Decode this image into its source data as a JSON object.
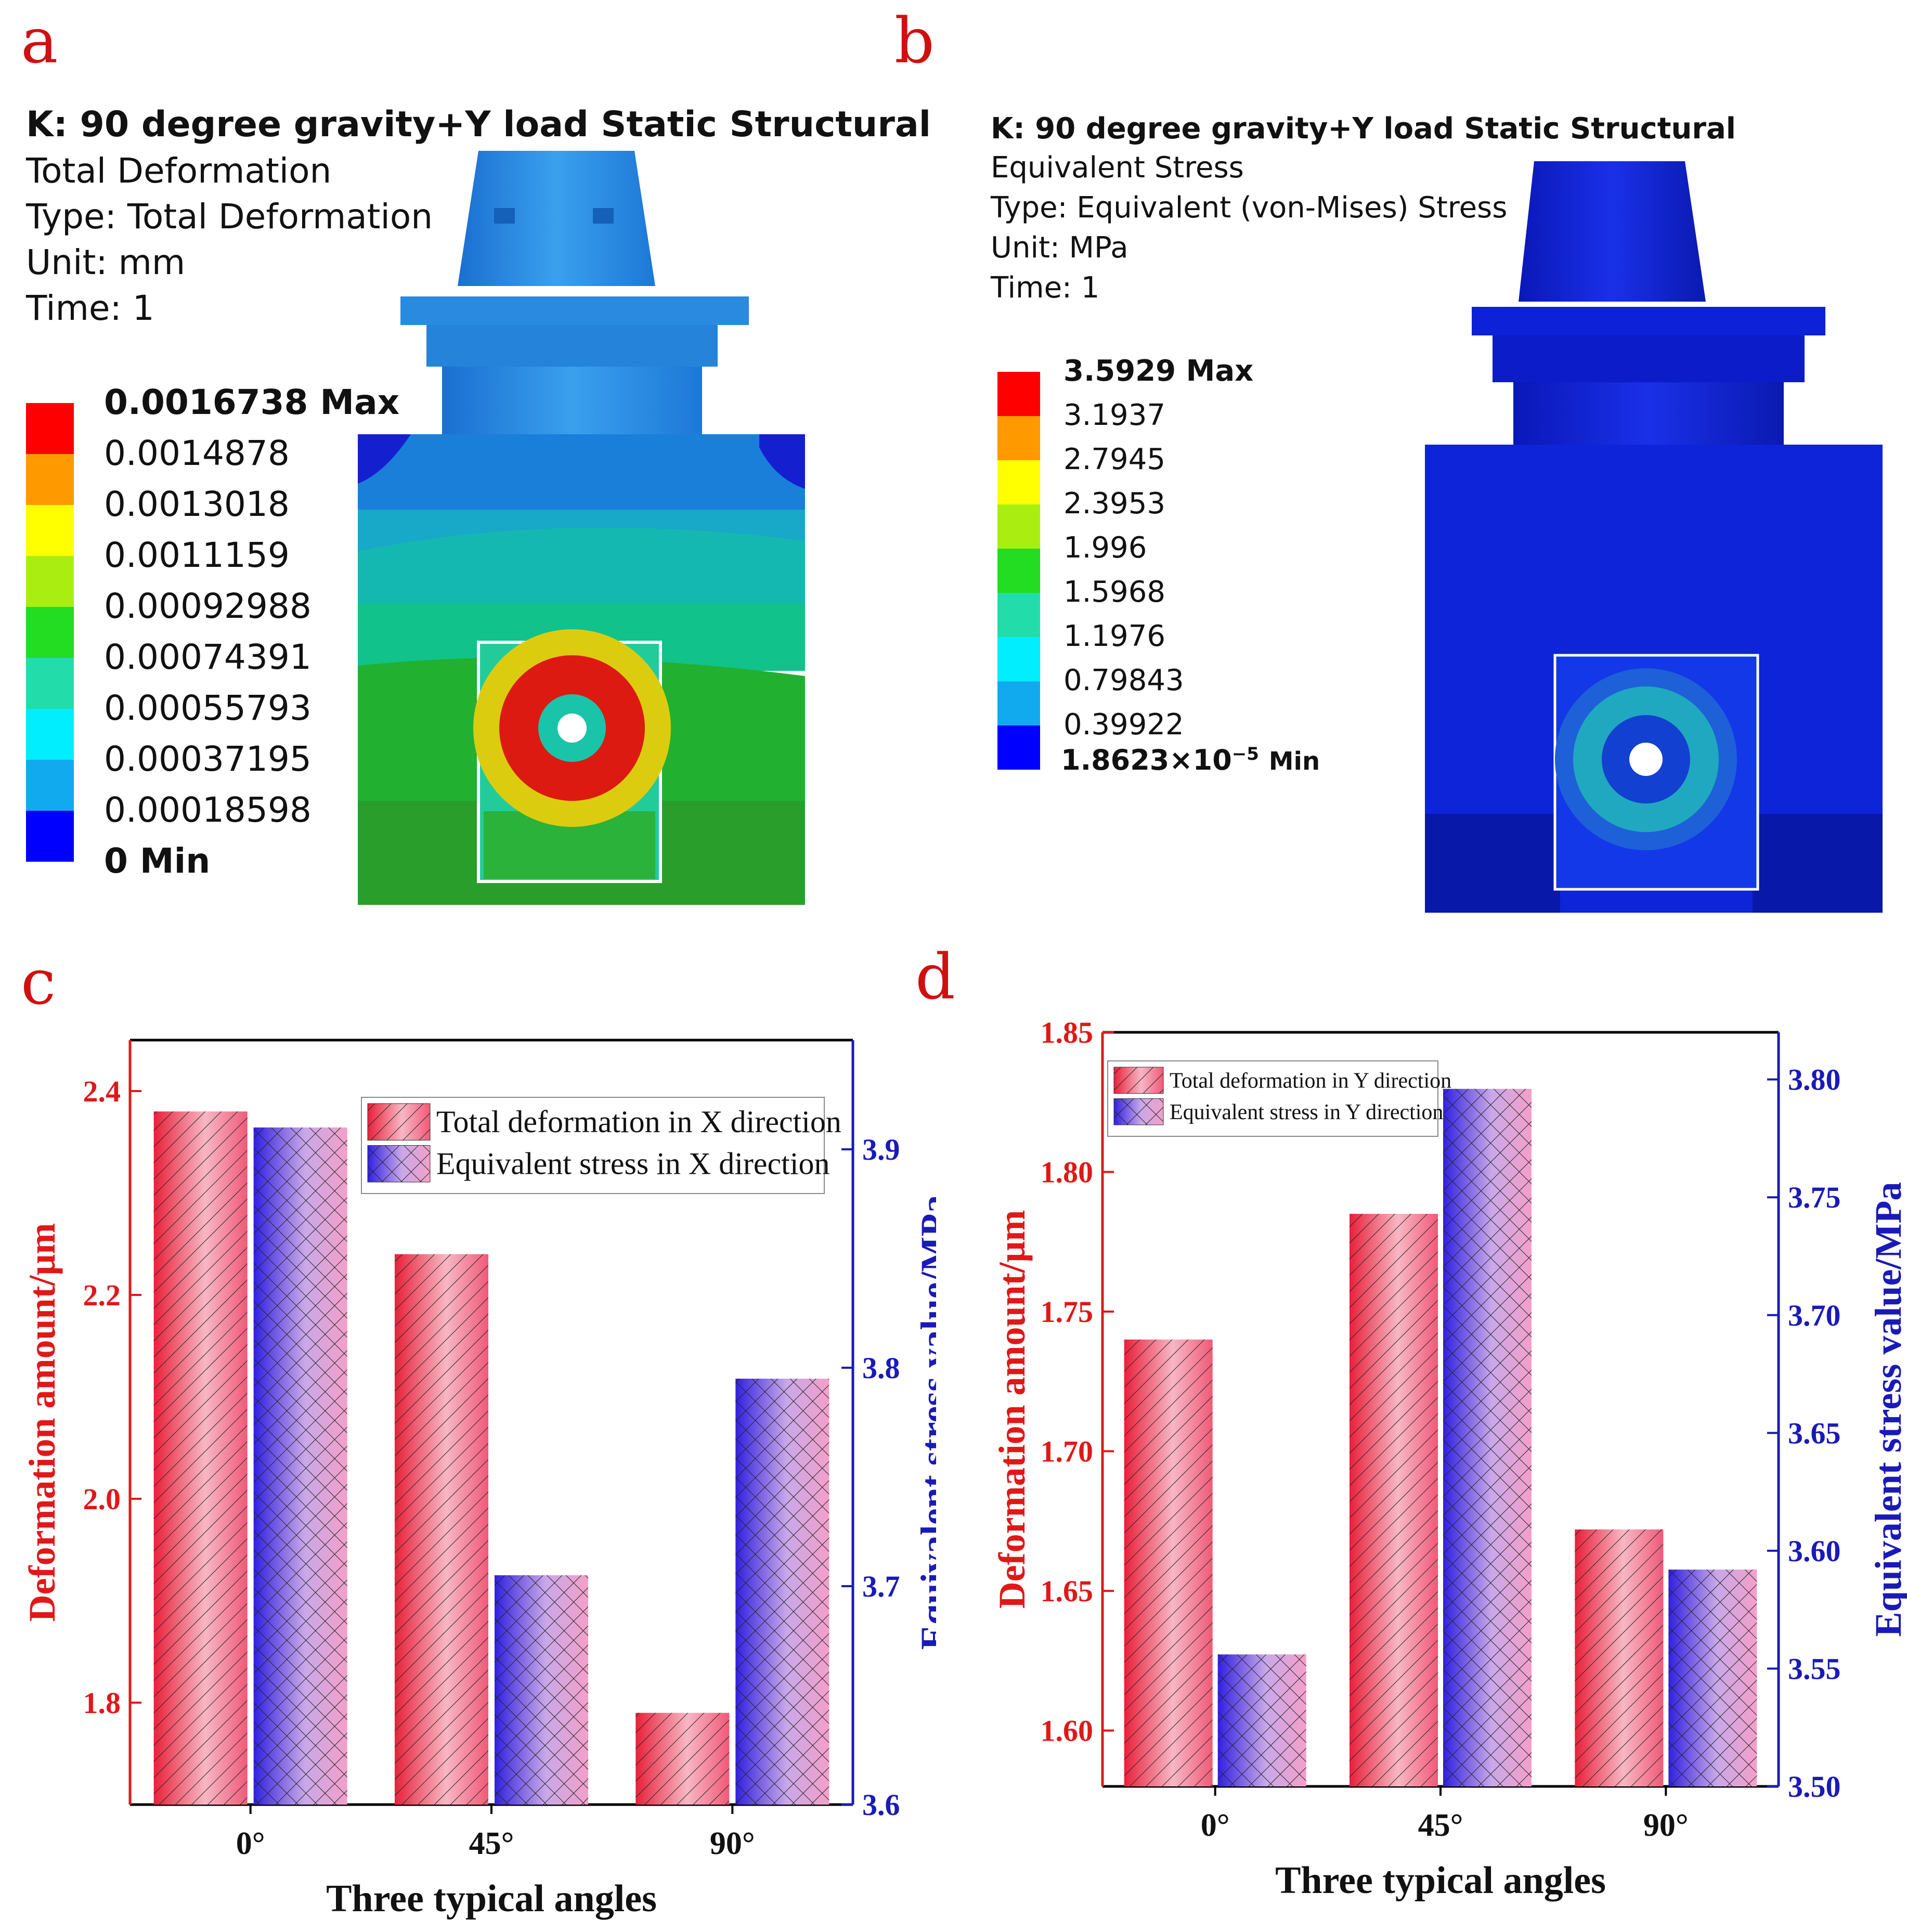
{
  "panels": {
    "a": {
      "letter": "a",
      "title": "K: 90 degree gravity+Y load Static Structural",
      "lines": [
        "Total Deformation",
        "Type: Total Deformation",
        "Unit: mm",
        "Time: 1"
      ],
      "legend": [
        "0.0016738 Max",
        "0.0014878",
        "0.0013018",
        "0.0011159",
        "0.00092988",
        "0.00074391",
        "0.00055793",
        "0.00037195",
        "0.00018598",
        "0 Min"
      ]
    },
    "b": {
      "letter": "b",
      "title": "K: 90 degree gravity+Y load Static Structural",
      "lines": [
        "Equivalent Stress",
        "Type: Equivalent (von-Mises) Stress",
        "Unit: MPa",
        "Time: 1"
      ],
      "legend": [
        "3.5929 Max",
        "3.1937",
        "2.7945",
        "2.3953",
        "1.996",
        "1.5968",
        "1.1976",
        "0.79843",
        "0.39922"
      ],
      "legend_min_base": "1.8623",
      "legend_min_times": "×",
      "legend_min_pow": "10",
      "legend_min_exp": "−5",
      "legend_min_suffix": "Min"
    },
    "c": {
      "letter": "c"
    },
    "d": {
      "letter": "d"
    }
  },
  "contour_colors": [
    "#ff0000",
    "#ff9900",
    "#ffff00",
    "#aaee11",
    "#22dd22",
    "#22ddaa",
    "#00eeff",
    "#11aaee",
    "#0000ff"
  ],
  "chart_data": [
    {
      "type": "bar",
      "title": "",
      "categories": [
        "0°",
        "45°",
        "90°"
      ],
      "xlabel": "Three typical angles",
      "ylabel": "Deformation amount/μm",
      "y2label": "Equivalent stress value/MPa",
      "ylim": [
        1.7,
        2.45
      ],
      "y2lim": [
        3.6,
        3.95
      ],
      "yticks": [
        "1.8",
        "2.0",
        "2.2",
        "2.4"
      ],
      "y2ticks": [
        "3.6",
        "3.7",
        "3.8",
        "3.9"
      ],
      "series": [
        {
          "name": "Total deformation in X direction",
          "axis": "left",
          "values": [
            2.38,
            2.24,
            1.79
          ]
        },
        {
          "name": "Equivalent stress in X direction",
          "axis": "right",
          "values": [
            3.91,
            3.705,
            3.795
          ]
        }
      ],
      "legend_position": "top-right"
    },
    {
      "type": "bar",
      "title": "",
      "categories": [
        "0°",
        "45°",
        "90°"
      ],
      "xlabel": "Three typical angles",
      "ylabel": "Deformation amount/μm",
      "y2label": "Equivalent stress value/MPa",
      "ylim": [
        1.58,
        1.85
      ],
      "y2lim": [
        3.5,
        3.82
      ],
      "yticks": [
        "1.60",
        "1.65",
        "1.70",
        "1.75",
        "1.80",
        "1.85"
      ],
      "y2ticks": [
        "3.50",
        "3.55",
        "3.60",
        "3.65",
        "3.70",
        "3.75",
        "3.80"
      ],
      "series": [
        {
          "name": "Total deformation in Y direction",
          "axis": "left",
          "values": [
            1.74,
            1.785,
            1.672
          ]
        },
        {
          "name": "Equivalent stress in Y direction",
          "axis": "right",
          "values": [
            3.556,
            3.796,
            3.592
          ]
        }
      ],
      "legend_position": "top-left"
    }
  ]
}
